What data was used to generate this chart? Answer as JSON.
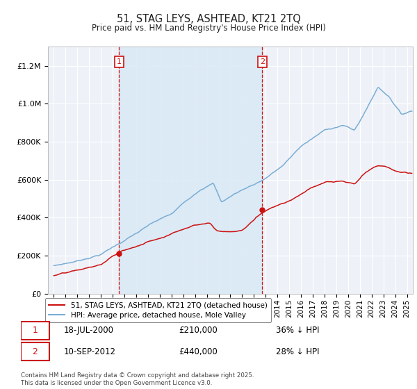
{
  "title": "51, STAG LEYS, ASHTEAD, KT21 2TQ",
  "subtitle": "Price paid vs. HM Land Registry's House Price Index (HPI)",
  "hpi_color": "#7aadd4",
  "price_color": "#cc1111",
  "purchase1_date": "18-JUL-2000",
  "purchase1_price": 210000,
  "purchase1_label": "36% ↓ HPI",
  "purchase2_date": "10-SEP-2012",
  "purchase2_price": 440000,
  "purchase2_label": "28% ↓ HPI",
  "legend_entry1": "51, STAG LEYS, ASHTEAD, KT21 2TQ (detached house)",
  "legend_entry2": "HPI: Average price, detached house, Mole Valley",
  "copyright_text": "Contains HM Land Registry data © Crown copyright and database right 2025.\nThis data is licensed under the Open Government Licence v3.0.",
  "ylim": [
    0,
    1300000
  ],
  "yticks": [
    0,
    200000,
    400000,
    600000,
    800000,
    1000000,
    1200000
  ],
  "xlim_start": 1994.5,
  "xlim_end": 2025.5,
  "background_color": "#ffffff",
  "plot_bg_color": "#eef2f8",
  "grid_color": "#ffffff",
  "vline_color": "#cc1111",
  "annotation_box_color": "#cc1111",
  "shade_color": "#d8e8f5",
  "sale1_year_float": 2000.54,
  "sale2_year_float": 2012.71
}
